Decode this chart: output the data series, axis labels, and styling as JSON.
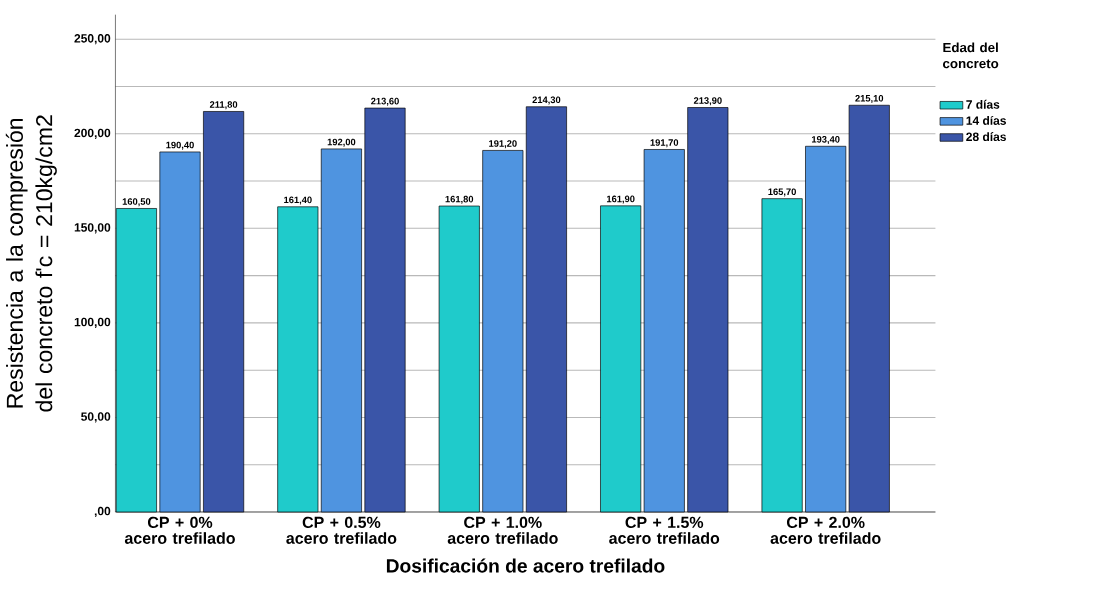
{
  "chart_data": {
    "type": "bar",
    "xlabel": "Dosificación de acero trefilado",
    "ylabel": "Resistencia a la compresión del concreto f'c = 210kg/cm2",
    "legend_title": "Edad del concreto",
    "categories": [
      "CP + 0% acero trefilado",
      "CP + 0.5% acero trefilado",
      "CP + 1.0% acero trefilado",
      "CP + 1.5% acero trefilado",
      "CP + 2.0% acero trefilado"
    ],
    "series": [
      {
        "name": "7 días",
        "color": "#1fcbcb",
        "values": [
          160.5,
          161.4,
          161.8,
          161.9,
          165.7
        ],
        "value_labels": [
          "160,50",
          "161,40",
          "161,80",
          "161,90",
          "165,70"
        ]
      },
      {
        "name": "14 días",
        "color": "#4f94e0",
        "values": [
          190.4,
          192.0,
          191.2,
          191.7,
          193.4
        ],
        "value_labels": [
          "190,40",
          "192,00",
          "191,20",
          "191,70",
          "193,40"
        ]
      },
      {
        "name": "28 días",
        "color": "#3a55a8",
        "values": [
          211.8,
          213.6,
          214.3,
          213.9,
          215.1
        ],
        "value_labels": [
          "211,80",
          "213,60",
          "214,30",
          "213,90",
          "215,10"
        ]
      }
    ],
    "ylim": [
      0,
      263
    ],
    "yticks": [
      {
        "value": 0,
        "label": ",00"
      },
      {
        "value": 25,
        "label": null
      },
      {
        "value": 50,
        "label": "50,00"
      },
      {
        "value": 75,
        "label": null
      },
      {
        "value": 100,
        "label": "100,00"
      },
      {
        "value": 125,
        "label": null
      },
      {
        "value": 150,
        "label": "150,00"
      },
      {
        "value": 175,
        "label": null
      },
      {
        "value": 200,
        "label": "200,00"
      },
      {
        "value": 225,
        "label": null
      },
      {
        "value": 250,
        "label": "250,00"
      }
    ],
    "grid": "y",
    "legend": "right"
  }
}
